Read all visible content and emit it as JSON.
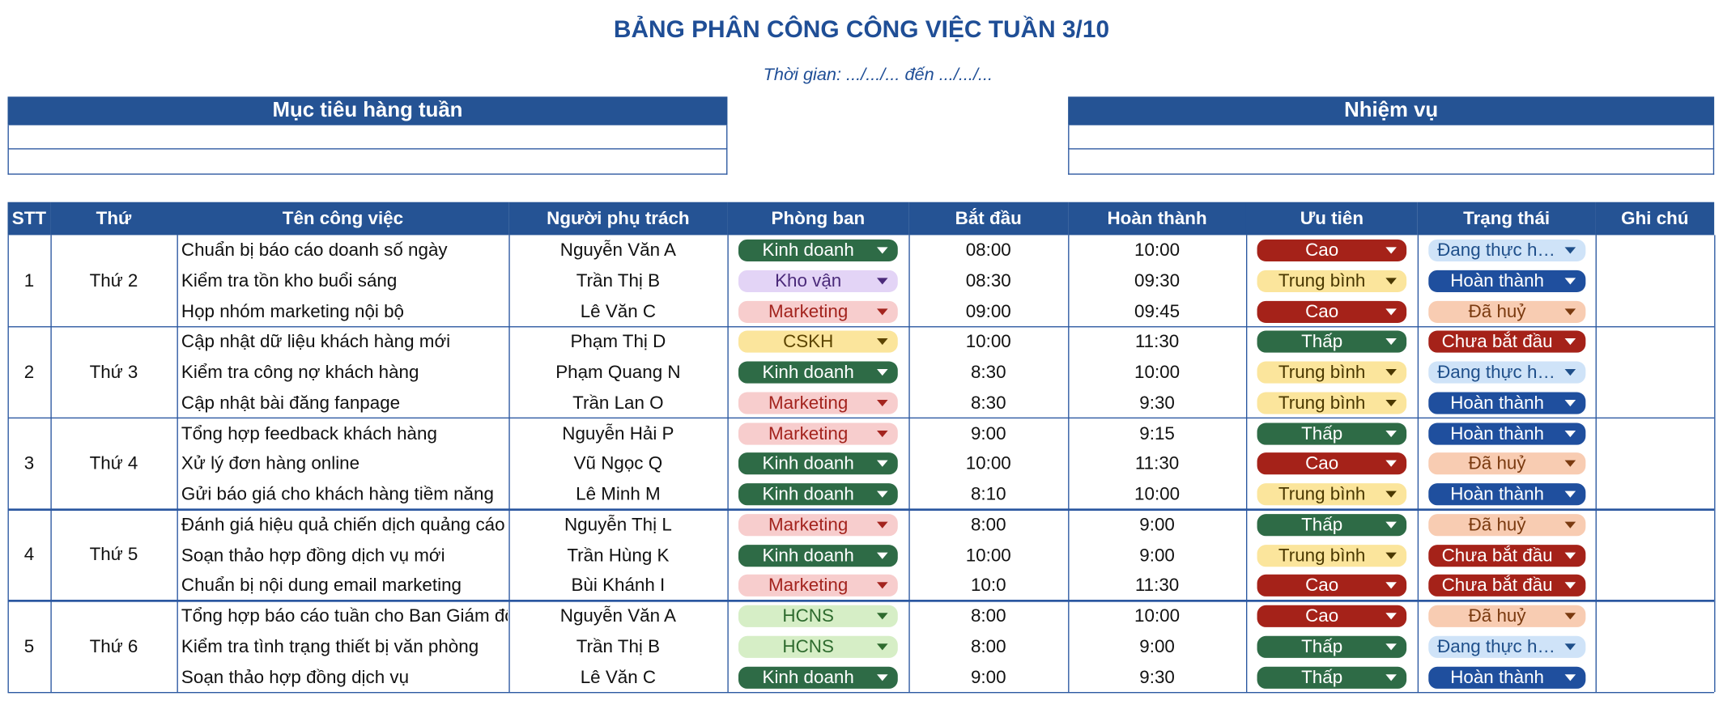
{
  "header": {
    "title": "BẢNG PHÂN CÔNG CÔNG VIỆC TUẦN 3/10",
    "subtitle": "Thời gian: .../.../... đến .../.../..."
  },
  "goals_box": {
    "title": "Mục tiêu hàng tuần"
  },
  "tasks_box": {
    "title": "Nhiệm vụ"
  },
  "table": {
    "columns": [
      "STT",
      "Thứ",
      "Tên công việc",
      "Người phụ trách",
      "Phòng ban",
      "Bắt đầu",
      "Hoàn thành",
      "Ưu tiên",
      "Trạng thái",
      "Ghi chú"
    ],
    "groups": [
      {
        "stt": 1,
        "day": "Thứ 2",
        "tasks": [
          {
            "name": "Chuẩn bị báo cáo doanh số ngày",
            "person": "Nguyễn Văn A",
            "dept": "Kinh doanh",
            "start": "08:00",
            "end": "10:00",
            "priority": "Cao",
            "status": "Đang thực hiện"
          },
          {
            "name": "Kiểm tra tồn kho buổi sáng",
            "person": "Trần Thị B",
            "dept": "Kho vận",
            "start": "08:30",
            "end": "09:30",
            "priority": "Trung bình",
            "status": "Hoàn thành"
          },
          {
            "name": "Họp nhóm marketing nội bộ",
            "person": "Lê Văn C",
            "dept": "Marketing",
            "start": "09:00",
            "end": "09:45",
            "priority": "Cao",
            "status": "Đã huỷ"
          }
        ]
      },
      {
        "stt": 2,
        "day": "Thứ 3",
        "tasks": [
          {
            "name": "Cập nhật dữ liệu khách hàng mới",
            "person": "Phạm Thị D",
            "dept": "CSKH",
            "start": "10:00",
            "end": "11:30",
            "priority": "Thấp",
            "status": "Chưa bắt đầu"
          },
          {
            "name": "Kiểm tra công nợ khách hàng",
            "person": "Phạm Quang N",
            "dept": "Kinh doanh",
            "start": "8:30",
            "end": "10:00",
            "priority": "Trung bình",
            "status": "Đang thực hiện"
          },
          {
            "name": "Cập nhật bài đăng fanpage",
            "person": "Trần Lan O",
            "dept": "Marketing",
            "start": "8:30",
            "end": "9:30",
            "priority": "Trung bình",
            "status": "Hoàn thành"
          }
        ]
      },
      {
        "stt": 3,
        "day": "Thứ 4",
        "tasks": [
          {
            "name": "Tổng hợp feedback khách hàng",
            "person": "Nguyễn Hải P",
            "dept": "Marketing",
            "start": "9:00",
            "end": "9:15",
            "priority": "Thấp",
            "status": "Hoàn thành"
          },
          {
            "name": "Xử lý đơn hàng online",
            "person": "Vũ Ngọc Q",
            "dept": "Kinh doanh",
            "start": "10:00",
            "end": "11:30",
            "priority": "Cao",
            "status": "Đã huỷ"
          },
          {
            "name": "Gửi báo giá cho khách hàng tiềm năng",
            "person": "Lê Minh M",
            "dept": "Kinh doanh",
            "start": "8:10",
            "end": "10:00",
            "priority": "Trung bình",
            "status": "Hoàn thành"
          }
        ]
      },
      {
        "stt": 4,
        "day": "Thứ 5",
        "tasks": [
          {
            "name": "Đánh giá hiệu quả chiến dịch quảng cáo",
            "person": "Nguyễn Thị L",
            "dept": "Marketing",
            "start": "8:00",
            "end": "9:00",
            "priority": "Thấp",
            "status": "Đã huỷ"
          },
          {
            "name": "Soạn thảo hợp đồng dịch vụ mới",
            "person": "Trần Hùng K",
            "dept": "Kinh doanh",
            "start": "10:00",
            "end": "9:00",
            "priority": "Trung bình",
            "status": "Chưa bắt đầu"
          },
          {
            "name": "Chuẩn bị nội dung email marketing",
            "person": "Bùi Khánh I",
            "dept": "Marketing",
            "start": "10:0",
            "end": "11:30",
            "priority": "Cao",
            "status": "Chưa bắt đầu"
          }
        ]
      },
      {
        "stt": 5,
        "day": "Thứ 6",
        "tasks": [
          {
            "name": "Tổng hợp báo cáo tuần cho Ban Giám đốc",
            "person": "Nguyễn Văn A",
            "dept": "HCNS",
            "start": "8:00",
            "end": "10:00",
            "priority": "Cao",
            "status": "Đã huỷ"
          },
          {
            "name": "Kiểm tra tình trạng thiết bị văn phòng",
            "person": "Trần Thị B",
            "dept": "HCNS",
            "start": "8:00",
            "end": "9:00",
            "priority": "Thấp",
            "status": "Đang thực hiện"
          },
          {
            "name": "Soạn thảo hợp đồng dịch vụ",
            "person": "Lê Văn C",
            "dept": "Kinh doanh",
            "start": "9:00",
            "end": "9:30",
            "priority": "Thấp",
            "status": "Hoàn thành"
          }
        ]
      }
    ],
    "chip_colors": {
      "Kinh doanh": [
        "#2e6b46",
        "#ffffff"
      ],
      "Kho vận": [
        "#e3d4f6",
        "#4b2a7a"
      ],
      "Marketing": [
        "#f7cdcd",
        "#a3241e"
      ],
      "CSKH": [
        "#fbe59c",
        "#5c4400"
      ],
      "HCNS": [
        "#d6eec6",
        "#2e6b2e"
      ],
      "Cao": [
        "#a52219",
        "#ffffff"
      ],
      "Trung bình": [
        "#fbe59c",
        "#4a3800"
      ],
      "Thấp": [
        "#2e6b46",
        "#ffffff"
      ],
      "Đang thực hiện": [
        "#cfe3f8",
        "#1f4f8a"
      ],
      "Hoàn thành": [
        "#1f4f9e",
        "#ffffff"
      ],
      "Đã huỷ": [
        "#f8ccb2",
        "#7a3a10"
      ],
      "Chưa bắt đầu": [
        "#a52219",
        "#ffffff"
      ]
    }
  }
}
